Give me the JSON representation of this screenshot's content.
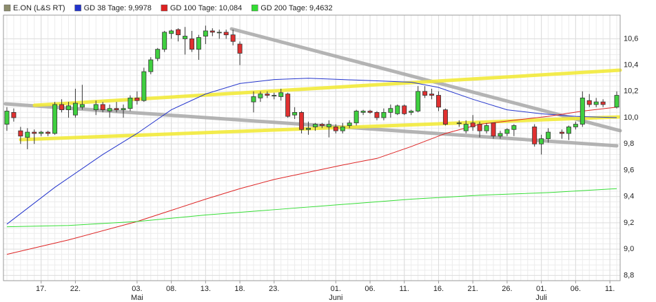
{
  "chart_data": {
    "type": "candlestick",
    "legend": "top-left",
    "grid": true,
    "xlim": [
      -0.5,
      89.5
    ],
    "ylim": [
      8.76,
      10.78
    ],
    "yticks": [
      {
        "value": 8.8,
        "label": "8,8"
      },
      {
        "value": 9.0,
        "label": "9,0"
      },
      {
        "value": 9.2,
        "label": "9,2"
      },
      {
        "value": 9.4,
        "label": "9,4"
      },
      {
        "value": 9.6,
        "label": "9,6"
      },
      {
        "value": 9.8,
        "label": "9,8"
      },
      {
        "value": 10.0,
        "label": "10,0"
      },
      {
        "value": 10.2,
        "label": "10,2"
      },
      {
        "value": 10.4,
        "label": "10,4"
      },
      {
        "value": 10.6,
        "label": "10,6"
      }
    ],
    "xticks": [
      {
        "value": 5,
        "label": "17."
      },
      {
        "value": 10,
        "label": "22."
      },
      {
        "value": 19,
        "label": "03."
      },
      {
        "value": 24,
        "label": "08."
      },
      {
        "value": 29,
        "label": "13."
      },
      {
        "value": 34,
        "label": "18."
      },
      {
        "value": 39,
        "label": "23."
      },
      {
        "value": 48,
        "label": "01."
      },
      {
        "value": 53,
        "label": "06."
      },
      {
        "value": 58,
        "label": "11."
      },
      {
        "value": 63,
        "label": "16."
      },
      {
        "value": 68,
        "label": "21."
      },
      {
        "value": 73,
        "label": "26."
      },
      {
        "value": 78,
        "label": "01."
      },
      {
        "value": 83,
        "label": "06."
      },
      {
        "value": 88,
        "label": "11."
      }
    ],
    "month_labels": [
      {
        "value": 19,
        "label": "Mai"
      },
      {
        "value": 48,
        "label": "Juni"
      },
      {
        "value": 78,
        "label": "Juli"
      }
    ],
    "candles": {
      "name": "E.ON (L&S RT)",
      "color": "#8c8c6c",
      "up_color": "#3fcf3f",
      "down_color": "#e03030",
      "x": [
        0,
        1,
        2,
        3,
        4,
        5,
        6,
        7,
        8,
        9,
        10,
        11,
        13,
        14,
        15,
        16,
        17,
        18,
        19,
        20,
        21,
        22,
        23,
        24,
        25,
        26,
        27,
        28,
        29,
        30,
        31,
        32,
        33,
        34,
        36,
        37,
        38,
        39,
        40,
        41,
        42,
        43,
        44,
        45,
        46,
        47,
        48,
        49,
        50,
        51,
        52,
        53,
        54,
        55,
        56,
        57,
        58,
        59,
        60,
        61,
        62,
        63,
        64,
        66,
        67,
        68,
        69,
        70,
        71,
        72,
        73,
        74,
        77,
        78,
        79,
        81,
        82,
        83,
        84,
        85,
        86,
        87,
        89
      ],
      "open": [
        9.95,
        10.04,
        9.9,
        9.85,
        9.89,
        9.88,
        9.89,
        9.88,
        10.1,
        10.06,
        10.02,
        10.08,
        10.06,
        10.1,
        10.05,
        10.07,
        10.06,
        10.07,
        10.15,
        10.13,
        10.35,
        10.45,
        10.52,
        10.64,
        10.67,
        10.6,
        10.6,
        10.52,
        10.62,
        10.66,
        10.65,
        10.65,
        10.63,
        10.56,
        10.12,
        10.15,
        10.18,
        10.17,
        10.16,
        10.18,
        10.02,
        10.04,
        9.91,
        9.93,
        9.95,
        9.93,
        9.93,
        9.9,
        9.94,
        9.96,
        10.04,
        10.05,
        10.04,
        10.0,
        10.04,
        10.03,
        10.09,
        10.04,
        10.05,
        10.2,
        10.18,
        10.17,
        10.06,
        9.96,
        9.9,
        9.96,
        9.95,
        9.9,
        9.96,
        9.86,
        9.88,
        9.91,
        9.93,
        9.8,
        9.84,
        9.89,
        9.88,
        9.93,
        9.95,
        10.13,
        10.1,
        10.12,
        10.08
      ],
      "high": [
        10.08,
        10.07,
        9.93,
        9.92,
        9.91,
        9.9,
        9.9,
        10.12,
        10.14,
        10.12,
        10.22,
        10.25,
        10.13,
        10.12,
        10.1,
        10.12,
        10.1,
        10.17,
        10.2,
        10.38,
        10.46,
        10.53,
        10.66,
        10.67,
        10.68,
        10.69,
        10.66,
        10.63,
        10.7,
        10.68,
        10.67,
        10.67,
        10.67,
        10.58,
        10.2,
        10.2,
        10.2,
        10.19,
        10.22,
        10.19,
        10.08,
        10.05,
        9.97,
        9.96,
        9.96,
        9.98,
        9.95,
        9.96,
        9.98,
        10.06,
        10.06,
        10.06,
        10.05,
        10.07,
        10.1,
        10.1,
        10.1,
        10.06,
        10.24,
        10.24,
        10.22,
        10.2,
        10.07,
        9.98,
        9.98,
        10.02,
        9.97,
        9.96,
        9.96,
        9.9,
        9.92,
        9.95,
        9.95,
        9.87,
        9.92,
        9.91,
        9.94,
        9.97,
        10.2,
        10.18,
        10.15,
        10.14,
        10.2
      ],
      "low": [
        9.9,
        9.97,
        9.8,
        9.76,
        9.8,
        9.86,
        9.86,
        9.87,
        10.04,
        10.0,
        10.0,
        10.06,
        10.02,
        10.04,
        10.0,
        10.04,
        10.0,
        10.05,
        10.1,
        10.12,
        10.33,
        10.43,
        10.5,
        10.6,
        10.58,
        10.48,
        10.5,
        10.44,
        10.56,
        10.62,
        10.6,
        10.6,
        10.55,
        10.4,
        10.04,
        10.12,
        10.15,
        10.14,
        10.13,
        10.0,
        9.99,
        9.88,
        9.87,
        9.9,
        9.92,
        9.85,
        9.88,
        9.88,
        9.92,
        9.94,
        10.02,
        10.03,
        9.98,
        9.98,
        10.0,
        10.02,
        10.02,
        10.02,
        10.04,
        10.15,
        10.14,
        10.05,
        9.94,
        9.93,
        9.88,
        9.9,
        9.85,
        9.88,
        9.84,
        9.84,
        9.86,
        9.86,
        9.78,
        9.72,
        9.81,
        9.84,
        9.83,
        9.91,
        9.93,
        10.08,
        10.08,
        10.08,
        10.07
      ],
      "close": [
        10.05,
        10.0,
        9.86,
        9.89,
        9.88,
        9.89,
        9.88,
        10.1,
        10.06,
        10.09,
        10.11,
        10.1,
        10.1,
        10.06,
        10.07,
        10.06,
        10.07,
        10.15,
        10.13,
        10.35,
        10.44,
        10.52,
        10.65,
        10.66,
        10.63,
        10.62,
        10.52,
        10.61,
        10.66,
        10.65,
        10.65,
        10.63,
        10.58,
        10.49,
        10.16,
        10.18,
        10.17,
        10.17,
        10.19,
        10.01,
        10.04,
        9.91,
        9.92,
        9.95,
        9.94,
        9.95,
        9.9,
        9.93,
        9.96,
        10.05,
        10.05,
        10.04,
        10.0,
        10.04,
        10.07,
        10.09,
        10.03,
        10.05,
        10.2,
        10.17,
        10.17,
        10.08,
        9.95,
        9.96,
        9.95,
        9.93,
        9.9,
        9.94,
        9.86,
        9.88,
        9.91,
        9.94,
        9.8,
        9.84,
        9.89,
        9.88,
        9.93,
        9.95,
        10.15,
        10.1,
        10.12,
        10.1,
        10.17
      ]
    },
    "series": [
      {
        "name": "GD 38 Tage: 9,9978",
        "color": "#2233cc",
        "x": [
          0,
          7,
          14,
          19,
          24,
          29,
          34,
          39,
          44,
          49,
          54,
          59,
          63,
          68,
          73,
          78,
          83,
          89
        ],
        "values": [
          9.19,
          9.47,
          9.72,
          9.88,
          10.06,
          10.18,
          10.26,
          10.29,
          10.3,
          10.29,
          10.28,
          10.27,
          10.23,
          10.14,
          10.06,
          10.03,
          10.01,
          10.0
        ]
      },
      {
        "name": "GD 100 Tage: 10,084",
        "color": "#dd2222",
        "x": [
          0,
          9,
          19,
          29,
          34,
          39,
          49,
          54,
          59,
          64,
          69,
          74,
          79,
          84,
          89
        ],
        "values": [
          8.96,
          9.07,
          9.21,
          9.38,
          9.46,
          9.53,
          9.64,
          9.69,
          9.78,
          9.88,
          9.95,
          9.98,
          10.01,
          10.05,
          10.08
        ]
      },
      {
        "name": "GD 200 Tage: 9,4632",
        "color": "#33dd33",
        "x": [
          0,
          9,
          19,
          29,
          39,
          49,
          59,
          69,
          79,
          89
        ],
        "values": [
          9.17,
          9.18,
          9.21,
          9.26,
          9.3,
          9.34,
          9.38,
          9.41,
          9.43,
          9.46
        ]
      }
    ]
  }
}
